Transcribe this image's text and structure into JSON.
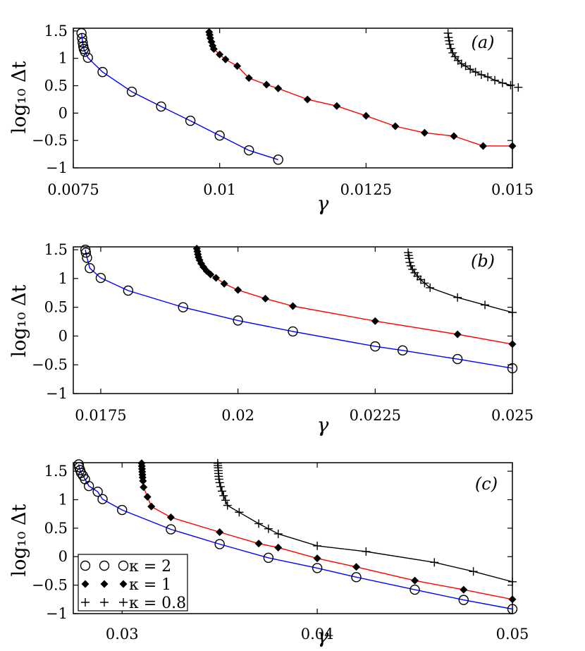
{
  "chart_data": [
    {
      "type": "line",
      "panel_label": "(a)",
      "xlabel": "γ",
      "ylabel": "log₁₀ Δt",
      "xlim": [
        0.0075,
        0.015
      ],
      "ylim": [
        -1,
        1.55
      ],
      "xticks": [
        0.0075,
        0.01,
        0.0125,
        0.015
      ],
      "xtick_labels": [
        "0.0075",
        "0.01",
        "0.0125",
        "0.015"
      ],
      "yticks": [
        1.5,
        1,
        0.5,
        0,
        -0.5,
        -1
      ],
      "ytick_labels": [
        "1.5",
        "1",
        "0.5",
        "0",
        "−0.5",
        "−1"
      ],
      "series": [
        {
          "name": "κ = 2",
          "marker": "circle",
          "color": "#0000ff",
          "x": [
            0.00764,
            0.00765,
            0.00766,
            0.00767,
            0.00768,
            0.0077,
            0.00775,
            0.008,
            0.0085,
            0.009,
            0.0095,
            0.01,
            0.0105,
            0.011
          ],
          "y": [
            1.46,
            1.37,
            1.29,
            1.22,
            1.17,
            1.12,
            1.01,
            0.75,
            0.39,
            0.12,
            -0.14,
            -0.41,
            -0.68,
            -0.85
          ]
        },
        {
          "name": "κ = 1",
          "marker": "diamond",
          "color": "#ff0000",
          "x": [
            0.00982,
            0.00983,
            0.00984,
            0.00986,
            0.00988,
            0.0099,
            0.01,
            0.0101,
            0.0103,
            0.0105,
            0.0108,
            0.011,
            0.0115,
            0.012,
            0.0125,
            0.013,
            0.0135,
            0.014,
            0.0145,
            0.015
          ],
          "y": [
            1.48,
            1.43,
            1.37,
            1.3,
            1.23,
            1.17,
            1.07,
            0.98,
            0.86,
            0.64,
            0.52,
            0.45,
            0.25,
            0.13,
            -0.05,
            -0.24,
            -0.36,
            -0.42,
            -0.6,
            -0.6
          ]
        },
        {
          "name": "κ = 0.8",
          "marker": "plus",
          "color": "#000000",
          "x": [
            0.0139,
            0.01391,
            0.01392,
            0.01393,
            0.01395,
            0.01398,
            0.01402,
            0.01407,
            0.01413,
            0.0142,
            0.01428,
            0.01437,
            0.01447,
            0.01458,
            0.0147,
            0.01483,
            0.01497,
            0.0151
          ],
          "y": [
            1.46,
            1.38,
            1.32,
            1.26,
            1.18,
            1.1,
            1.03,
            0.96,
            0.9,
            0.86,
            0.8,
            0.75,
            0.7,
            0.66,
            0.6,
            0.55,
            0.51,
            0.47
          ]
        }
      ]
    },
    {
      "type": "line",
      "panel_label": "(b)",
      "xlabel": "γ",
      "ylabel": "log₁₀ Δt",
      "xlim": [
        0.017,
        0.025
      ],
      "ylim": [
        -1,
        1.55
      ],
      "xticks": [
        0.0175,
        0.02,
        0.0225,
        0.025
      ],
      "xtick_labels": [
        "0.0175",
        "0.02",
        "0.0225",
        "0.025"
      ],
      "yticks": [
        1.5,
        1,
        0.5,
        0,
        -0.5,
        -1
      ],
      "ytick_labels": [
        "1.5",
        "1",
        "0.5",
        "0",
        "−0.5",
        "−1"
      ],
      "series": [
        {
          "name": "κ = 2",
          "marker": "circle",
          "color": "#0000ff",
          "x": [
            0.01722,
            0.01723,
            0.01725,
            0.0173,
            0.0175,
            0.018,
            0.019,
            0.02,
            0.021,
            0.0225,
            0.023,
            0.024,
            0.025
          ],
          "y": [
            1.5,
            1.45,
            1.36,
            1.18,
            1.01,
            0.79,
            0.5,
            0.27,
            0.08,
            -0.18,
            -0.25,
            -0.4,
            -0.56
          ]
        },
        {
          "name": "κ = 1",
          "marker": "diamond",
          "color": "#ff0000",
          "x": [
            0.01925,
            0.01926,
            0.01927,
            0.01928,
            0.0193,
            0.01933,
            0.01937,
            0.01943,
            0.0195,
            0.0196,
            0.01975,
            0.02,
            0.0205,
            0.021,
            0.0225,
            0.024,
            0.025
          ],
          "y": [
            1.52,
            1.47,
            1.42,
            1.37,
            1.32,
            1.26,
            1.2,
            1.13,
            1.07,
            1.01,
            0.91,
            0.8,
            0.65,
            0.52,
            0.26,
            0.03,
            -0.14
          ]
        },
        {
          "name": "κ = 0.8",
          "marker": "plus",
          "color": "#000000",
          "x": [
            0.0231,
            0.02311,
            0.02312,
            0.02313,
            0.02315,
            0.02318,
            0.02322,
            0.02327,
            0.02333,
            0.0234,
            0.0235,
            0.024,
            0.0245,
            0.025
          ],
          "y": [
            1.45,
            1.4,
            1.35,
            1.28,
            1.22,
            1.16,
            1.1,
            1.04,
            0.98,
            0.92,
            0.84,
            0.67,
            0.54,
            0.41
          ]
        }
      ]
    },
    {
      "type": "line",
      "panel_label": "(c)",
      "xlabel": "γ",
      "ylabel": "log₁₀ Δt",
      "xlim": [
        0.0275,
        0.05
      ],
      "ylim": [
        -1,
        1.65
      ],
      "xticks": [
        0.03,
        0.04,
        0.05
      ],
      "xtick_labels": [
        "0.03",
        "0.04",
        "0.05"
      ],
      "yticks": [
        1.5,
        1,
        0.5,
        0,
        -0.5,
        -1
      ],
      "ytick_labels": [
        "1.5",
        "1",
        "0.5",
        "0",
        "−0.5",
        "−1"
      ],
      "series": [
        {
          "name": "κ = 2",
          "marker": "circle",
          "color": "#0000ff",
          "x": [
            0.02778,
            0.0278,
            0.02785,
            0.0279,
            0.028,
            0.0281,
            0.0283,
            0.02875,
            0.029,
            0.03,
            0.0325,
            0.035,
            0.0375,
            0.04,
            0.042,
            0.045,
            0.0475,
            0.05
          ],
          "y": [
            1.62,
            1.57,
            1.52,
            1.47,
            1.42,
            1.36,
            1.24,
            1.14,
            1.01,
            0.82,
            0.48,
            0.22,
            -0.02,
            -0.2,
            -0.36,
            -0.58,
            -0.76,
            -0.92
          ]
        },
        {
          "name": "κ = 1",
          "marker": "diamond",
          "color": "#ff0000",
          "x": [
            0.031,
            0.03101,
            0.03102,
            0.03103,
            0.03104,
            0.03105,
            0.03107,
            0.0311,
            0.0313,
            0.0315,
            0.0325,
            0.035,
            0.037,
            0.038,
            0.04,
            0.042,
            0.045,
            0.0475,
            0.05
          ],
          "y": [
            1.64,
            1.59,
            1.54,
            1.49,
            1.44,
            1.39,
            1.33,
            1.22,
            1.05,
            0.88,
            0.69,
            0.43,
            0.23,
            0.16,
            -0.03,
            -0.18,
            -0.42,
            -0.58,
            -0.75
          ]
        },
        {
          "name": "κ = 0.8",
          "marker": "plus",
          "color": "#000000",
          "x": [
            0.0349,
            0.03491,
            0.03492,
            0.03493,
            0.03494,
            0.03495,
            0.03497,
            0.035,
            0.03505,
            0.03512,
            0.0352,
            0.0353,
            0.0354,
            0.036,
            0.037,
            0.0375,
            0.038,
            0.04,
            0.0425,
            0.046,
            0.048,
            0.05
          ],
          "y": [
            1.64,
            1.6,
            1.56,
            1.51,
            1.46,
            1.41,
            1.36,
            1.3,
            1.23,
            1.15,
            1.07,
            0.99,
            0.9,
            0.78,
            0.58,
            0.49,
            0.4,
            0.19,
            0.09,
            -0.1,
            -0.26,
            -0.44
          ]
        }
      ],
      "legend": {
        "placement": "bottom-left",
        "entries": [
          "κ = 2",
          "κ = 1",
          "κ = 0.8"
        ]
      }
    }
  ]
}
